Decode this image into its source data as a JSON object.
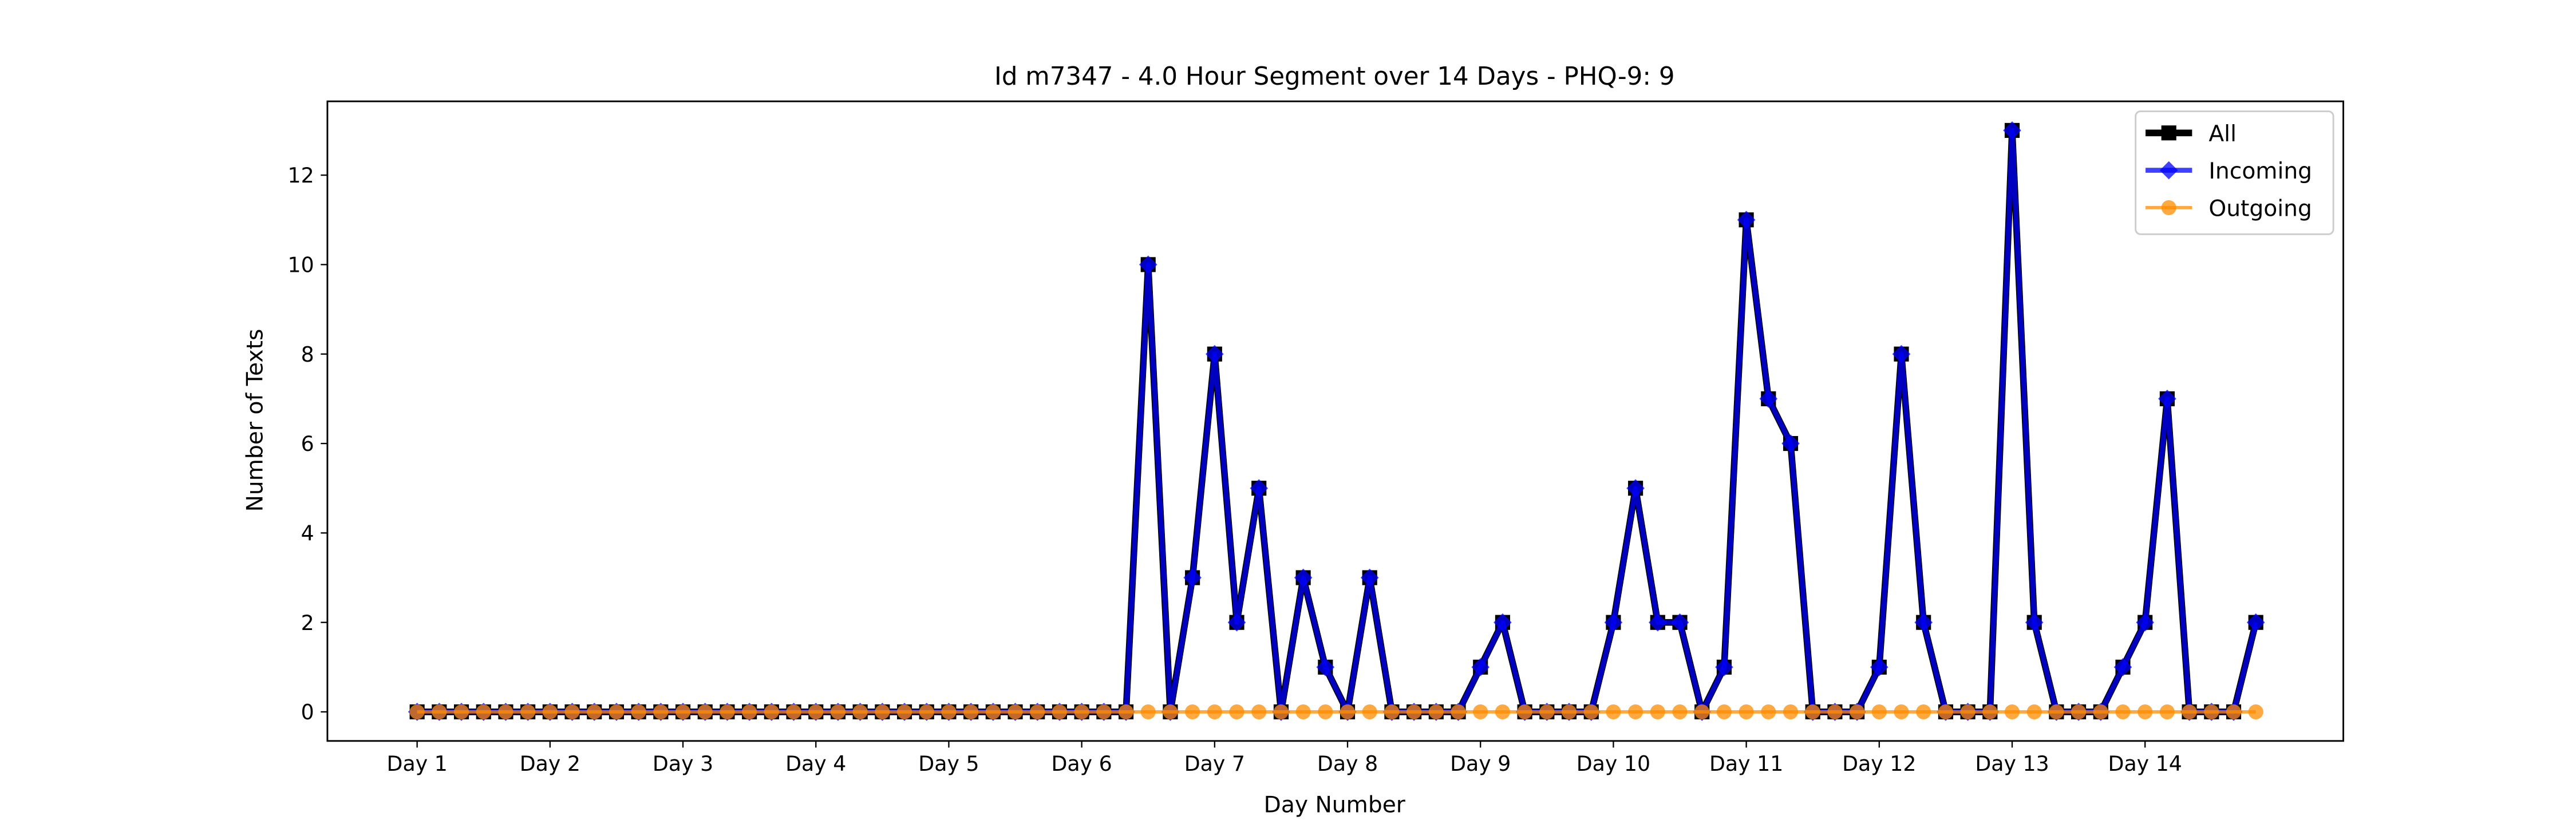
{
  "chart_data": {
    "type": "line",
    "title": "Id m7347 - 4.0 Hour Segment over 14 Days - PHQ-9: 9",
    "x_label": "Day Number",
    "y_label": "Number of Texts",
    "categories": [
      "Day 1",
      null,
      null,
      null,
      null,
      null,
      "Day 2",
      null,
      null,
      null,
      null,
      null,
      "Day 3",
      null,
      null,
      null,
      null,
      null,
      "Day 4",
      null,
      null,
      null,
      null,
      null,
      "Day 5",
      null,
      null,
      null,
      null,
      null,
      "Day 6",
      null,
      null,
      null,
      null,
      null,
      "Day 7",
      null,
      null,
      null,
      null,
      null,
      "Day 8",
      null,
      null,
      null,
      null,
      null,
      "Day 9",
      null,
      null,
      null,
      null,
      null,
      "Day 10",
      null,
      null,
      null,
      null,
      null,
      "Day 11",
      null,
      null,
      null,
      null,
      null,
      "Day 12",
      null,
      null,
      null,
      null,
      null,
      "Day 13",
      null,
      null,
      null,
      null,
      null,
      "Day 14",
      null,
      null,
      null,
      null,
      null
    ],
    "series": [
      {
        "name": "All",
        "color": "#000000",
        "marker": "square",
        "values": [
          0,
          0,
          0,
          0,
          0,
          0,
          0,
          0,
          0,
          0,
          0,
          0,
          0,
          0,
          0,
          0,
          0,
          0,
          0,
          0,
          0,
          0,
          0,
          0,
          0,
          0,
          0,
          0,
          0,
          0,
          0,
          0,
          0,
          10,
          0,
          3,
          8,
          2,
          5,
          0,
          3,
          1,
          0,
          3,
          0,
          0,
          0,
          0,
          1,
          2,
          0,
          0,
          0,
          0,
          2,
          5,
          2,
          2,
          0,
          1,
          11,
          7,
          6,
          0,
          0,
          0,
          1,
          8,
          2,
          0,
          0,
          0,
          13,
          2,
          0,
          0,
          0,
          1,
          2,
          7,
          0,
          0,
          0,
          2
        ]
      },
      {
        "name": "Incoming",
        "color": "#0000ff",
        "marker": "diamond",
        "values": [
          0,
          0,
          0,
          0,
          0,
          0,
          0,
          0,
          0,
          0,
          0,
          0,
          0,
          0,
          0,
          0,
          0,
          0,
          0,
          0,
          0,
          0,
          0,
          0,
          0,
          0,
          0,
          0,
          0,
          0,
          0,
          0,
          0,
          10,
          0,
          3,
          8,
          2,
          5,
          0,
          3,
          1,
          0,
          3,
          0,
          0,
          0,
          0,
          1,
          2,
          0,
          0,
          0,
          0,
          2,
          5,
          2,
          2,
          0,
          1,
          11,
          7,
          6,
          0,
          0,
          0,
          1,
          8,
          2,
          0,
          0,
          0,
          13,
          2,
          0,
          0,
          0,
          1,
          2,
          7,
          0,
          0,
          0,
          2
        ]
      },
      {
        "name": "Outgoing",
        "color": "#ff8c00",
        "marker": "circle",
        "values": [
          0,
          0,
          0,
          0,
          0,
          0,
          0,
          0,
          0,
          0,
          0,
          0,
          0,
          0,
          0,
          0,
          0,
          0,
          0,
          0,
          0,
          0,
          0,
          0,
          0,
          0,
          0,
          0,
          0,
          0,
          0,
          0,
          0,
          0,
          0,
          0,
          0,
          0,
          0,
          0,
          0,
          0,
          0,
          0,
          0,
          0,
          0,
          0,
          0,
          0,
          0,
          0,
          0,
          0,
          0,
          0,
          0,
          0,
          0,
          0,
          0,
          0,
          0,
          0,
          0,
          0,
          0,
          0,
          0,
          0,
          0,
          0,
          0,
          0,
          0,
          0,
          0,
          0,
          0,
          0,
          0,
          0,
          0,
          0
        ]
      }
    ],
    "ylim": [
      -0.65,
      13.65
    ],
    "yticks": [
      0,
      2,
      4,
      6,
      8,
      10,
      12
    ],
    "legend": "upper right",
    "grid": false
  }
}
